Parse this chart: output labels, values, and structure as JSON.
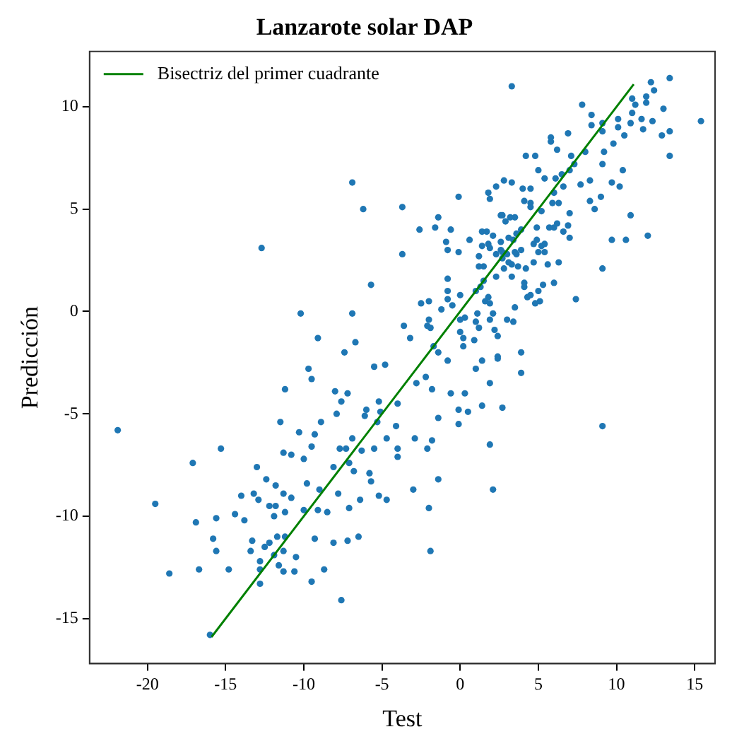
{
  "chart_data": {
    "type": "scatter",
    "title": "Lanzarote solar DAP",
    "xlabel": "Test",
    "ylabel": "Predicción",
    "xlim": [
      -23.7,
      16.3
    ],
    "ylim": [
      -17.2,
      12.7
    ],
    "xticks": [
      -20,
      -15,
      -10,
      -5,
      0,
      5,
      10,
      15
    ],
    "yticks": [
      -15,
      -10,
      -5,
      0,
      5,
      10
    ],
    "grid": false,
    "legend": "top left",
    "marker": "circle",
    "series": [
      {
        "color": "#1f77b4",
        "x": [
          -21.9,
          -19.5,
          -18.6,
          -17.1,
          -15.3,
          -12.7,
          -6.9,
          -6.2,
          -3.7,
          -3.7,
          -5.7,
          -10.2,
          -6.9,
          -9.1,
          -6.7,
          -7.4,
          -9.7,
          -9.5,
          -11.2,
          -5.5,
          -4.8,
          -8.0,
          -7.2,
          -7.6,
          -7.9,
          -8.9,
          -11.5,
          -6.0,
          -6.1,
          -5.2,
          -5.1,
          -4.1,
          -10.3,
          -9.3,
          -6.9,
          -5.3,
          -4.7,
          -11.3,
          -10.8,
          -9.5,
          -10.0,
          -7.7,
          -7.3,
          -6.3,
          -5.5,
          -4.0,
          -13.0,
          -12.4,
          -11.8,
          -9.8,
          -9.0,
          -8.1,
          -7.1,
          -6.8,
          -5.8,
          -5.7,
          -4.0,
          -14.0,
          -13.2,
          -12.9,
          -11.3,
          -10.8,
          -12.2,
          -11.8,
          -11.2,
          -11.9,
          -10.0,
          -9.1,
          -8.5,
          -7.8,
          -7.1,
          -6.4,
          -5.2,
          -4.7,
          -14.4,
          -13.8,
          -15.6,
          -16.9,
          -15.8,
          -15.6,
          -13.3,
          -13.4,
          -12.5,
          -12.2,
          -11.7,
          -11.2,
          -11.9,
          -11.3,
          -10.5,
          -11.6,
          -12.8,
          -12.8,
          -12.8,
          -11.3,
          -10.6,
          -9.3,
          -8.1,
          -7.2,
          -6.5,
          -9.5,
          -8.7,
          -14.8,
          -16.7,
          -7.6,
          -16.0,
          -4.0,
          -0.8,
          1.4,
          2.4,
          1.0,
          3.9,
          -2.8,
          -2.2,
          -1.8,
          -0.6,
          0.3,
          1.9,
          -0.1,
          0.5,
          1.4,
          2.7,
          -1.4,
          -0.1,
          9.1,
          -2.9,
          -2.1,
          -1.8,
          1.9,
          -3.0,
          -1.4,
          2.1,
          -2.0,
          -1.9,
          3.3,
          12.2,
          13.4,
          12.4,
          11.9,
          11.0,
          11.2,
          11.0,
          11.9,
          13.0,
          13.4,
          12.9,
          13.4,
          15.4,
          12.3,
          11.6,
          10.9,
          11.7,
          10.1,
          10.1,
          9.1,
          8.4,
          8.4,
          7.8,
          9.1,
          9.8,
          10.5,
          9.2,
          9.1,
          10.4,
          10.2,
          9.7,
          10.9,
          12.0,
          10.6,
          9.7,
          9.1,
          8.6,
          9.0,
          8.3,
          8.3,
          7.7,
          8.0,
          6.9,
          5.8,
          5.8,
          6.2,
          7.1,
          7.3,
          7.0,
          6.5,
          6.1,
          6.6,
          6.0,
          6.3,
          5.9,
          7.0,
          6.9,
          6.6,
          7.0,
          6.2,
          6.0,
          5.2,
          5.4,
          5.0,
          4.8,
          4.2,
          4.0,
          4.5,
          3.3,
          2.8,
          2.3,
          1.8,
          1.9,
          4.1,
          4.5,
          4.5,
          3.5,
          2.9,
          2.6,
          3.6,
          3.9,
          3.1,
          3.4,
          4.9,
          4.9,
          4.7,
          5.2,
          5.4,
          5.4,
          5.0,
          4.7,
          5.6,
          6.3,
          6.0,
          5.3,
          5.0,
          4.8,
          5.1,
          4.3,
          4.1,
          4.1,
          4.2,
          3.7,
          3.6,
          3.9,
          3.5,
          3.0,
          2.6,
          2.3,
          2.7,
          3.1,
          3.3,
          3.3,
          2.8,
          2.3,
          2.6,
          2.1,
          1.7,
          1.8,
          1.9,
          1.4,
          1.4,
          1.5,
          1.2,
          1.2,
          0.6,
          -0.1,
          -0.9,
          -0.8,
          -0.6,
          -1.6,
          -1.4,
          -2.6,
          -0.1,
          2.7,
          3.2,
          2.7,
          -0.8,
          -0.8,
          -0.8,
          0.0,
          1.0,
          1.5,
          1.3,
          1.8,
          1.6,
          1.9,
          2.1,
          1.9,
          1.1,
          1.0,
          1.2,
          0.3,
          0.0,
          -0.5,
          -1.2,
          -2.0,
          -2.5,
          -2.0,
          -2.1,
          -1.9,
          -3.6,
          -3.2,
          -1.7,
          -1.4,
          0.0,
          0.2,
          0.2,
          0.9,
          2.2,
          2.4,
          3.0,
          3.4,
          3.5,
          4.5,
          3.9,
          2.4,
          7.4,
          5.7
        ],
        "values": [
          -5.8,
          -9.4,
          -12.8,
          -7.4,
          -6.7,
          3.1,
          6.3,
          5.0,
          5.1,
          2.8,
          1.3,
          -0.1,
          -0.1,
          -1.3,
          -1.5,
          -2.0,
          -2.8,
          -3.3,
          -3.8,
          -2.7,
          -2.6,
          -3.9,
          -4.0,
          -4.4,
          -5.0,
          -5.4,
          -5.4,
          -4.8,
          -5.1,
          -4.4,
          -4.9,
          -5.6,
          -5.9,
          -6.0,
          -6.2,
          -5.4,
          -6.2,
          -6.9,
          -7.0,
          -6.6,
          -7.2,
          -6.7,
          -6.7,
          -6.8,
          -6.7,
          -6.7,
          -7.6,
          -8.2,
          -8.5,
          -8.4,
          -8.7,
          -7.6,
          -7.4,
          -7.8,
          -7.9,
          -8.3,
          -7.1,
          -9.0,
          -8.9,
          -9.2,
          -8.9,
          -9.1,
          -9.5,
          -9.5,
          -9.8,
          -10.0,
          -9.7,
          -9.7,
          -9.8,
          -8.9,
          -9.6,
          -9.2,
          -9.0,
          -9.2,
          -9.9,
          -10.2,
          -10.1,
          -10.3,
          -11.1,
          -11.7,
          -11.2,
          -11.7,
          -11.5,
          -11.3,
          -11.0,
          -11.0,
          -11.9,
          -11.7,
          -12.0,
          -12.4,
          -12.2,
          -12.6,
          -13.3,
          -12.7,
          -12.7,
          -11.1,
          -11.3,
          -11.2,
          -11.0,
          -13.2,
          -12.6,
          -12.6,
          -12.6,
          -14.1,
          -15.8,
          -4.5,
          -2.4,
          -2.4,
          -2.3,
          -2.8,
          -3.0,
          -3.5,
          -3.2,
          -3.8,
          -4.0,
          -4.0,
          -3.5,
          -4.8,
          -4.9,
          -4.6,
          -4.7,
          -5.2,
          -5.5,
          -5.6,
          -6.2,
          -6.7,
          -6.3,
          -6.5,
          -8.7,
          -8.2,
          -8.7,
          -9.6,
          -11.7,
          11.0,
          11.2,
          11.4,
          10.8,
          10.5,
          10.4,
          10.1,
          9.7,
          10.2,
          9.9,
          8.8,
          8.6,
          7.6,
          9.3,
          9.3,
          9.4,
          9.2,
          8.9,
          9.4,
          9.0,
          9.2,
          9.6,
          9.1,
          10.1,
          8.8,
          8.2,
          8.6,
          7.8,
          7.2,
          6.9,
          6.1,
          6.3,
          4.7,
          3.7,
          3.5,
          3.5,
          2.1,
          5.0,
          5.6,
          5.4,
          6.4,
          6.2,
          7.8,
          8.7,
          8.3,
          8.5,
          7.9,
          7.6,
          7.2,
          6.9,
          6.7,
          6.5,
          6.1,
          5.8,
          5.3,
          5.3,
          4.8,
          4.2,
          3.9,
          3.6,
          4.3,
          4.1,
          4.9,
          6.5,
          6.9,
          7.6,
          7.6,
          6.0,
          6.0,
          6.3,
          6.4,
          6.1,
          5.8,
          5.5,
          5.4,
          5.3,
          5.1,
          4.6,
          4.4,
          4.7,
          3.8,
          4.0,
          3.6,
          3.5,
          4.1,
          3.5,
          3.3,
          3.2,
          3.3,
          2.9,
          2.9,
          2.4,
          2.3,
          2.4,
          1.4,
          1.3,
          1.0,
          0.4,
          0.5,
          0.7,
          1.4,
          1.2,
          2.1,
          2.2,
          2.8,
          3.0,
          2.9,
          2.8,
          3.0,
          2.8,
          2.6,
          2.4,
          1.7,
          2.3,
          2.1,
          1.7,
          3.4,
          3.7,
          3.9,
          3.3,
          3.1,
          3.9,
          3.2,
          2.2,
          2.2,
          2.7,
          3.5,
          2.9,
          3.4,
          3.0,
          4.0,
          4.1,
          4.6,
          4.0,
          5.6,
          4.7,
          4.6,
          2.9,
          1.6,
          1.0,
          0.6,
          0.8,
          1.0,
          1.5,
          1.2,
          0.7,
          0.5,
          0.4,
          -0.1,
          -0.4,
          -0.1,
          -0.5,
          -0.8,
          -0.3,
          -0.4,
          0.3,
          0.1,
          0.5,
          0.4,
          -0.4,
          -0.7,
          -0.8,
          -0.7,
          -1.3,
          -1.7,
          -2.0,
          -1.0,
          -1.3,
          -1.7,
          -1.4,
          -0.9,
          -1.2,
          -0.4,
          -0.5,
          0.2,
          0.8,
          -2.0,
          -2.2,
          0.6,
          4.1
        ]
      },
      {
        "type": "line",
        "name": "Bisectriz del primer cuadrante",
        "color": "#008000",
        "marker": "none",
        "x": [
          -15.9,
          11.1
        ],
        "values": [
          -15.9,
          11.1
        ]
      }
    ]
  }
}
